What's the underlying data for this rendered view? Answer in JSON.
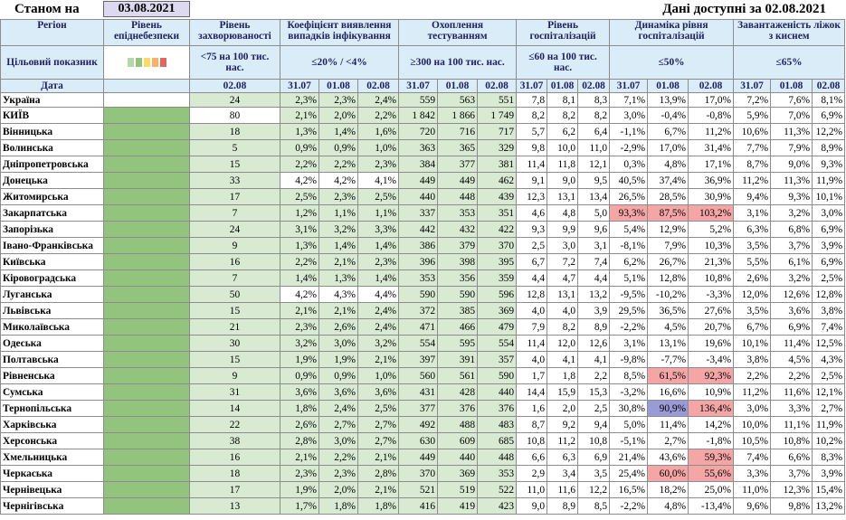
{
  "header": {
    "as_of_label": "Станом на",
    "as_of_date": "03.08.2021",
    "available_text": "Дані доступні за  02.08.2021"
  },
  "columns": {
    "region": "Регіон",
    "target": "Цільовий показник",
    "date": "Дата",
    "epid": "Рівень епіднебезпеки",
    "incidence": "Рівень захворюваності",
    "incidence_target": "<75 на 100 тис. нас.",
    "incidence_date": "02.08",
    "detection": "Коефіцієнт виявлення випадків інфікування",
    "detection_target": "≤20% / <4%",
    "testing": "Охоплення тестуванням",
    "testing_target": "≥300 на 100 тис. нас.",
    "hosp": "Рівень госпіталізацій",
    "hosp_target": "≤60 на 100 тис. нас.",
    "dyn": "Динаміка рівня госпіталізацій",
    "dyn_target": "≤50%",
    "oxygen": "Завантаженість ліжок з киснем",
    "oxygen_target": "≤65%",
    "dates": [
      "31.07",
      "01.08",
      "02.08"
    ],
    "swatch_colors": [
      "#b6d7a8",
      "#93c47d",
      "#ffd966",
      "#f6b26b",
      "#e06666"
    ]
  },
  "rows": [
    {
      "name": "Україна",
      "inc": "24",
      "det": [
        "2,3%",
        "2,3%",
        "2,4%"
      ],
      "test": [
        "559",
        "563",
        "551"
      ],
      "hosp": [
        "7,8",
        "8,1",
        "8,3"
      ],
      "dyn": [
        "7,1%",
        "13,9%",
        "17,0%"
      ],
      "oxy": [
        "7,2%",
        "7,6%",
        "8,1%"
      ]
    },
    {
      "name": "КИЇВ",
      "inc": "80",
      "det": [
        "2,1%",
        "2,0%",
        "2,2%"
      ],
      "test": [
        "1 842",
        "1 866",
        "1 749"
      ],
      "hosp": [
        "8,2",
        "8,2",
        "8,2"
      ],
      "dyn": [
        "3,0%",
        "-0,4%",
        "-0,8%"
      ],
      "oxy": [
        "5,9%",
        "7,0%",
        "6,9%"
      ]
    },
    {
      "name": "Вінницька",
      "inc": "18",
      "det": [
        "1,3%",
        "1,4%",
        "1,6%"
      ],
      "test": [
        "720",
        "716",
        "717"
      ],
      "hosp": [
        "5,7",
        "6,2",
        "6,4"
      ],
      "dyn": [
        "-1,1%",
        "6,7%",
        "11,2%"
      ],
      "oxy": [
        "10,6%",
        "11,3%",
        "12,2%"
      ]
    },
    {
      "name": "Волинська",
      "inc": "5",
      "det": [
        "0,9%",
        "0,9%",
        "1,0%"
      ],
      "test": [
        "363",
        "365",
        "329"
      ],
      "hosp": [
        "9,8",
        "10,0",
        "11,0"
      ],
      "dyn": [
        "-2,9%",
        "17,0%",
        "31,4%"
      ],
      "oxy": [
        "7,7%",
        "7,9%",
        "8,9%"
      ]
    },
    {
      "name": "Дніпропетровська",
      "inc": "15",
      "det": [
        "2,2%",
        "2,2%",
        "2,3%"
      ],
      "test": [
        "384",
        "377",
        "381"
      ],
      "hosp": [
        "11,4",
        "11,8",
        "12,1"
      ],
      "dyn": [
        "0,3%",
        "4,8%",
        "17,1%"
      ],
      "oxy": [
        "8,7%",
        "9,0%",
        "9,3%"
      ]
    },
    {
      "name": "Донецька",
      "inc": "33",
      "det": [
        "4,2%",
        "4,2%",
        "4,1%"
      ],
      "test": [
        "449",
        "449",
        "462"
      ],
      "hosp": [
        "9,1",
        "9,0",
        "9,5"
      ],
      "dyn": [
        "40,5%",
        "37,4%",
        "36,9%"
      ],
      "oxy": [
        "11,2%",
        "11,3%",
        "11,9%"
      ]
    },
    {
      "name": "Житомирська",
      "inc": "17",
      "det": [
        "2,5%",
        "2,3%",
        "2,5%"
      ],
      "test": [
        "440",
        "448",
        "439"
      ],
      "hosp": [
        "12,3",
        "13,1",
        "13,4"
      ],
      "dyn": [
        "26,5%",
        "28,5%",
        "30,9%"
      ],
      "oxy": [
        "9,4%",
        "9,3%",
        "10,1%"
      ]
    },
    {
      "name": "Закарпатська",
      "inc": "7",
      "det": [
        "1,2%",
        "1,1%",
        "1,1%"
      ],
      "test": [
        "337",
        "353",
        "351"
      ],
      "hosp": [
        "4,6",
        "4,8",
        "5,0"
      ],
      "dyn": [
        "93,3%",
        "87,5%",
        "103,2%"
      ],
      "oxy": [
        "3,1%",
        "3,2%",
        "3,0%"
      ]
    },
    {
      "name": "Запорізька",
      "inc": "24",
      "det": [
        "3,1%",
        "3,2%",
        "3,3%"
      ],
      "test": [
        "442",
        "432",
        "422"
      ],
      "hosp": [
        "9,3",
        "9,9",
        "9,6"
      ],
      "dyn": [
        "5,4%",
        "12,9%",
        "5,2%"
      ],
      "oxy": [
        "6,3%",
        "6,8%",
        "6,9%"
      ]
    },
    {
      "name": "Івано-Франківська",
      "inc": "9",
      "det": [
        "1,3%",
        "1,4%",
        "1,4%"
      ],
      "test": [
        "386",
        "379",
        "370"
      ],
      "hosp": [
        "2,5",
        "3,0",
        "3,1"
      ],
      "dyn": [
        "-8,1%",
        "7,9%",
        "10,3%"
      ],
      "oxy": [
        "3,5%",
        "3,7%",
        "3,9%"
      ]
    },
    {
      "name": "Київська",
      "inc": "16",
      "det": [
        "2,2%",
        "2,1%",
        "2,3%"
      ],
      "test": [
        "396",
        "398",
        "395"
      ],
      "hosp": [
        "6,7",
        "7,2",
        "7,4"
      ],
      "dyn": [
        "6,2%",
        "26,7%",
        "21,3%"
      ],
      "oxy": [
        "5,5%",
        "6,1%",
        "6,9%"
      ]
    },
    {
      "name": "Кіровоградська",
      "inc": "7",
      "det": [
        "1,4%",
        "1,3%",
        "1,4%"
      ],
      "test": [
        "353",
        "356",
        "359"
      ],
      "hosp": [
        "4,4",
        "4,7",
        "4,4"
      ],
      "dyn": [
        "5,1%",
        "12,8%",
        "10,8%"
      ],
      "oxy": [
        "2,6%",
        "3,2%",
        "2,5%"
      ]
    },
    {
      "name": "Луганська",
      "inc": "50",
      "det": [
        "4,2%",
        "4,3%",
        "4,4%"
      ],
      "test": [
        "590",
        "590",
        "596"
      ],
      "hosp": [
        "12,8",
        "13,1",
        "13,2"
      ],
      "dyn": [
        "-9,5%",
        "-10,2%",
        "-3,3%"
      ],
      "oxy": [
        "12,0%",
        "12,6%",
        "12,8%"
      ]
    },
    {
      "name": "Львівська",
      "inc": "15",
      "det": [
        "2,1%",
        "2,1%",
        "2,4%"
      ],
      "test": [
        "372",
        "385",
        "369"
      ],
      "hosp": [
        "4,0",
        "4,0",
        "3,9"
      ],
      "dyn": [
        "29,5%",
        "36,5%",
        "27,6%"
      ],
      "oxy": [
        "3,5%",
        "3,6%",
        "3,8%"
      ]
    },
    {
      "name": "Миколаївська",
      "inc": "21",
      "det": [
        "2,3%",
        "2,6%",
        "2,4%"
      ],
      "test": [
        "471",
        "466",
        "479"
      ],
      "hosp": [
        "7,9",
        "8,2",
        "8,9"
      ],
      "dyn": [
        "-2,2%",
        "4,5%",
        "20,7%"
      ],
      "oxy": [
        "6,7%",
        "6,9%",
        "7,4%"
      ]
    },
    {
      "name": "Одеська",
      "inc": "30",
      "det": [
        "3,2%",
        "3,0%",
        "3,2%"
      ],
      "test": [
        "554",
        "595",
        "554"
      ],
      "hosp": [
        "11,4",
        "12,0",
        "12,6"
      ],
      "dyn": [
        "3,1%",
        "13,1%",
        "19,6%"
      ],
      "oxy": [
        "10,1%",
        "11,4%",
        "12,5%"
      ]
    },
    {
      "name": "Полтавська",
      "inc": "15",
      "det": [
        "1,9%",
        "1,9%",
        "2,1%"
      ],
      "test": [
        "397",
        "391",
        "357"
      ],
      "hosp": [
        "4,0",
        "4,1",
        "4,1"
      ],
      "dyn": [
        "-9,8%",
        "-7,7%",
        "-3,4%"
      ],
      "oxy": [
        "3,8%",
        "4,5%",
        "4,3%"
      ]
    },
    {
      "name": "Рівненська",
      "inc": "9",
      "det": [
        "0,9%",
        "0,9%",
        "1,0%"
      ],
      "test": [
        "560",
        "561",
        "590"
      ],
      "hosp": [
        "1,7",
        "1,8",
        "2,2"
      ],
      "dyn": [
        "8,5%",
        "61,5%",
        "92,3%"
      ],
      "oxy": [
        "2,2%",
        "2,2%",
        "2,5%"
      ]
    },
    {
      "name": "Сумська",
      "inc": "31",
      "det": [
        "3,6%",
        "3,6%",
        "3,6%"
      ],
      "test": [
        "431",
        "428",
        "440"
      ],
      "hosp": [
        "14,4",
        "15,9",
        "15,3"
      ],
      "dyn": [
        "-3,2%",
        "16,6%",
        "10,9%"
      ],
      "oxy": [
        "11,2%",
        "11,6%",
        "12,1%"
      ]
    },
    {
      "name": "Тернопільська",
      "inc": "14",
      "det": [
        "1,8%",
        "2,4%",
        "2,5%"
      ],
      "test": [
        "377",
        "376",
        "376"
      ],
      "hosp": [
        "1,6",
        "2,0",
        "2,5"
      ],
      "dyn": [
        "30,8%",
        "90,9%",
        "136,4%"
      ],
      "oxy": [
        "3,0%",
        "3,3%",
        "2,7%"
      ]
    },
    {
      "name": "Харківська",
      "inc": "22",
      "det": [
        "2,6%",
        "2,7%",
        "2,7%"
      ],
      "test": [
        "492",
        "488",
        "483"
      ],
      "hosp": [
        "8,7",
        "9,2",
        "9,4"
      ],
      "dyn": [
        "5,0%",
        "11,4%",
        "14,2%"
      ],
      "oxy": [
        "10,0%",
        "11,1%",
        "11,9%"
      ]
    },
    {
      "name": "Херсонська",
      "inc": "38",
      "det": [
        "2,8%",
        "3,0%",
        "2,7%"
      ],
      "test": [
        "630",
        "609",
        "685"
      ],
      "hosp": [
        "10,8",
        "11,2",
        "10,8"
      ],
      "dyn": [
        "-5,1%",
        "2,7%",
        "-1,8%"
      ],
      "oxy": [
        "10,5%",
        "10,8%",
        "10,2%"
      ]
    },
    {
      "name": "Хмельницька",
      "inc": "16",
      "det": [
        "2,1%",
        "2,2%",
        "2,1%"
      ],
      "test": [
        "449",
        "440",
        "448"
      ],
      "hosp": [
        "6,6",
        "6,3",
        "6,9"
      ],
      "dyn": [
        "21,4%",
        "43,6%",
        "59,3%"
      ],
      "oxy": [
        "7,4%",
        "6,6%",
        "8,3%"
      ]
    },
    {
      "name": "Черкаська",
      "inc": "18",
      "det": [
        "2,3%",
        "2,3%",
        "2,8%"
      ],
      "test": [
        "370",
        "369",
        "353"
      ],
      "hosp": [
        "2,9",
        "3,4",
        "3,5"
      ],
      "dyn": [
        "25,4%",
        "60,0%",
        "55,6%"
      ],
      "oxy": [
        "3,3%",
        "3,7%",
        "3,9%"
      ]
    },
    {
      "name": "Чернівецька",
      "inc": "17",
      "det": [
        "1,9%",
        "2,0%",
        "2,1%"
      ],
      "test": [
        "521",
        "519",
        "522"
      ],
      "hosp": [
        "11,0",
        "11,6",
        "12,2"
      ],
      "dyn": [
        "16,5%",
        "18,2%",
        "25,0%"
      ],
      "oxy": [
        "11,0%",
        "12,3%",
        "15,4%"
      ]
    },
    {
      "name": "Чернігівська",
      "inc": "13",
      "det": [
        "1,7%",
        "1,8%",
        "1,8%"
      ],
      "test": [
        "416",
        "419",
        "423"
      ],
      "hosp": [
        "9,0",
        "8,9",
        "8,5"
      ],
      "dyn": [
        "-2,2%",
        "4,8%",
        "-13,4%"
      ],
      "oxy": [
        "9,6%",
        "9,8%",
        "13,2%"
      ]
    }
  ]
}
